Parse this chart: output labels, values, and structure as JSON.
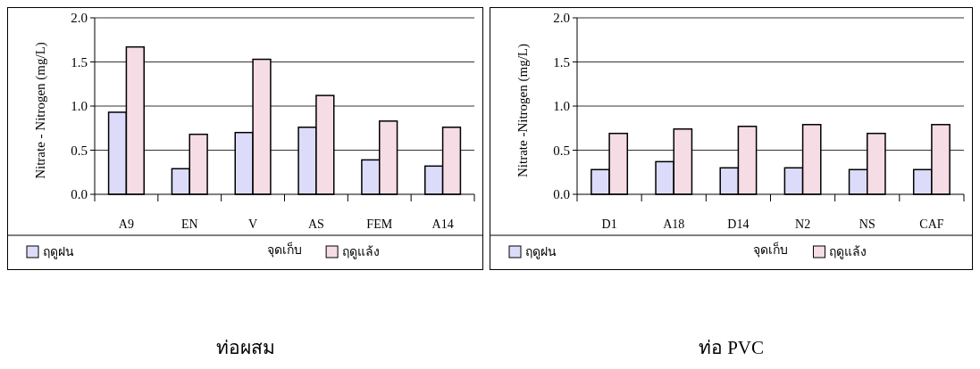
{
  "chart_data": [
    {
      "type": "bar",
      "title": "ท่อผสม",
      "xlabel": "จุดเก็บ",
      "ylabel": "Nitrate - Nitrogen (mg/L)",
      "categories": [
        "A9",
        "EN",
        "V",
        "AS",
        "FEM",
        "A14"
      ],
      "series": [
        {
          "name": "ฤดูฝน",
          "color": "#dcdcfa",
          "values": [
            0.93,
            0.29,
            0.7,
            0.76,
            0.39,
            0.32
          ]
        },
        {
          "name": "ฤดูแล้ง",
          "color": "#f6dce4",
          "values": [
            1.67,
            0.68,
            1.53,
            1.12,
            0.83,
            0.76
          ]
        }
      ],
      "ylim": [
        0,
        2
      ],
      "yticks": [
        {
          "value": 0,
          "label": "0.0"
        },
        {
          "value": 0.5,
          "label": "0.5"
        },
        {
          "value": 1,
          "label": "1.0"
        },
        {
          "value": 1.5,
          "label": "1.5"
        },
        {
          "value": 2,
          "label": "2.0"
        }
      ],
      "grid": "y",
      "legend": "bottom"
    },
    {
      "type": "bar",
      "title": "ท่อ PVC",
      "xlabel": "จุดเก็บ",
      "ylabel": "Nitrate -Nitrogen (mg/L)",
      "categories": [
        "D1",
        "A18",
        "D14",
        "N2",
        "NS",
        "CAF"
      ],
      "series": [
        {
          "name": "ฤดูฝน",
          "color": "#dcdcfa",
          "values": [
            0.28,
            0.37,
            0.3,
            0.3,
            0.28,
            0.28
          ]
        },
        {
          "name": "ฤดูแล้ง",
          "color": "#f6dce4",
          "values": [
            0.69,
            0.74,
            0.77,
            0.79,
            0.69,
            0.79
          ]
        }
      ],
      "ylim": [
        0,
        2
      ],
      "yticks": [
        {
          "value": 0,
          "label": "0.0"
        },
        {
          "value": 0.5,
          "label": "0.5"
        },
        {
          "value": 1,
          "label": "1.0"
        },
        {
          "value": 1.5,
          "label": "1.5"
        },
        {
          "value": 2,
          "label": "2.0"
        }
      ],
      "grid": "y",
      "legend": "bottom"
    }
  ]
}
